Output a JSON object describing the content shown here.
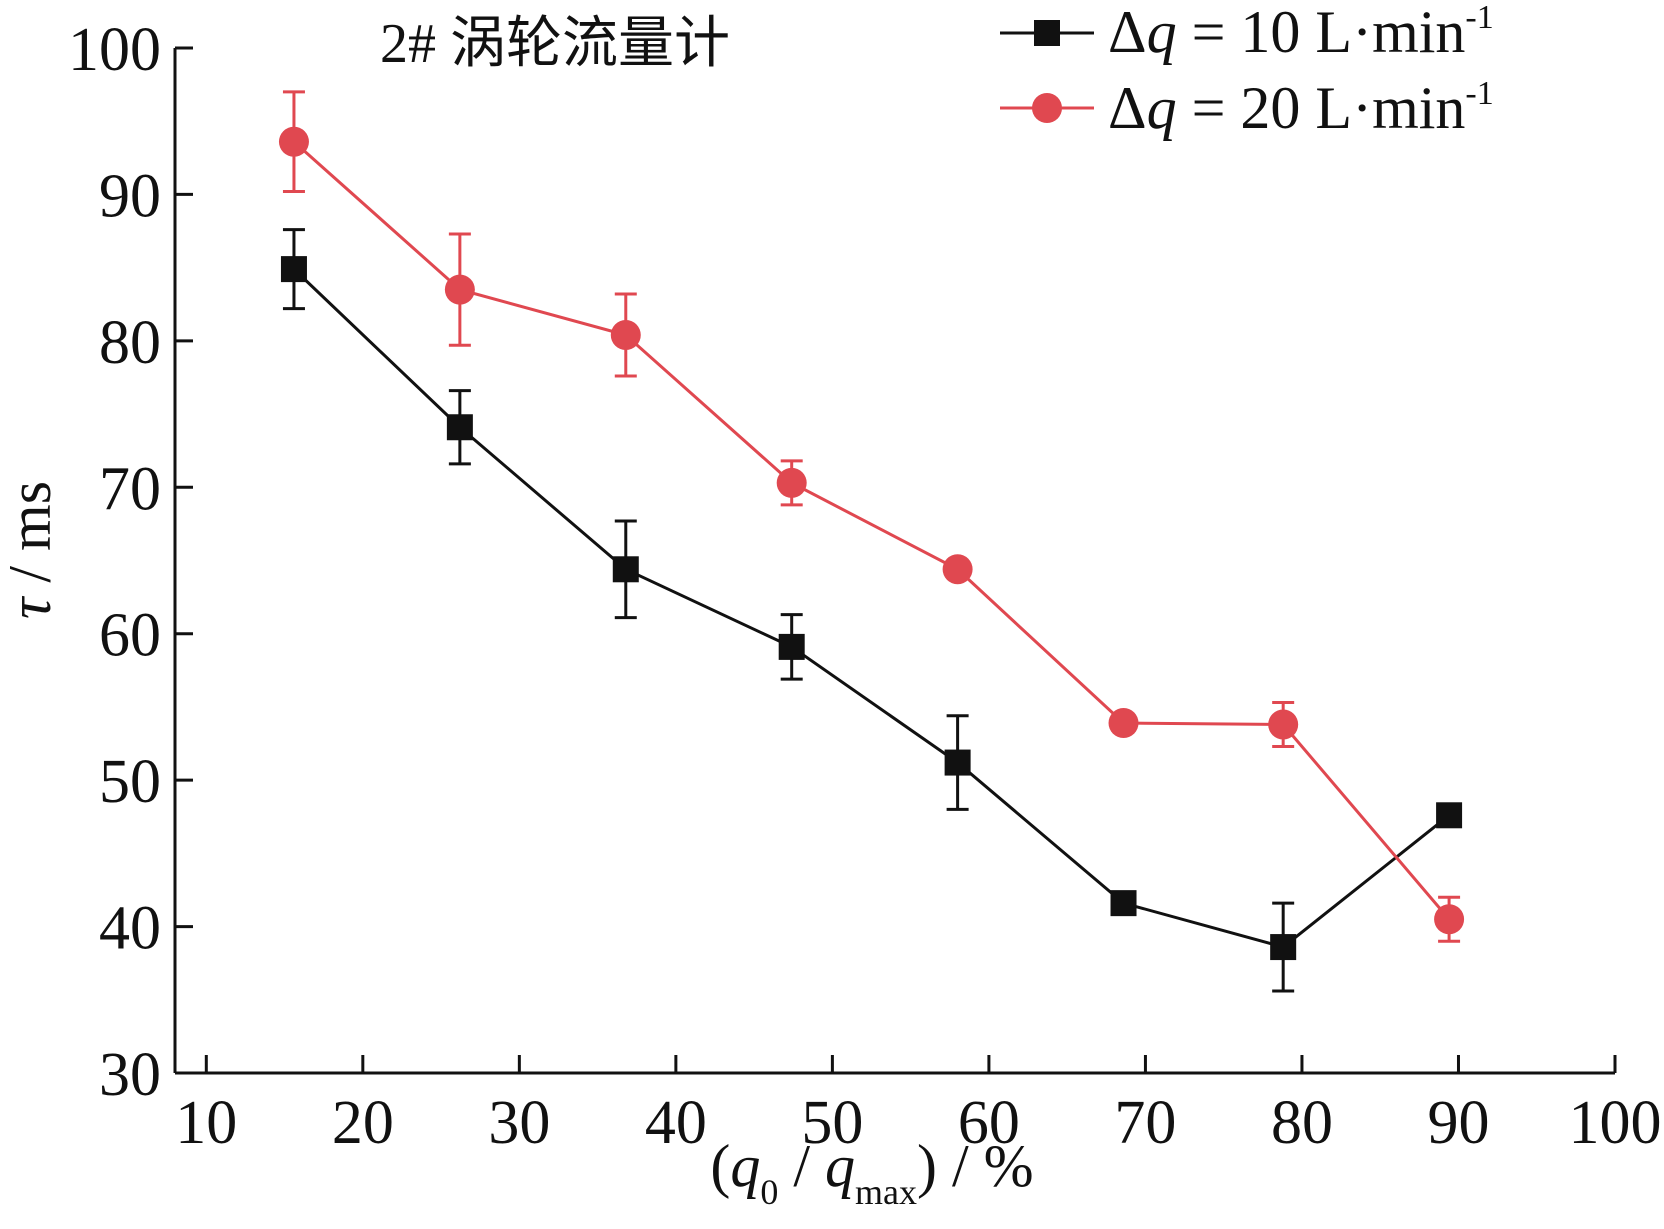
{
  "chart_data": {
    "type": "line",
    "title": "2# 涡轮流量计",
    "xlabel": {
      "open": "(",
      "q": "q",
      "sub0": "0",
      "slash": " / ",
      "q2": "q",
      "submax": "max",
      "close": ") / %"
    },
    "ylabel": {
      "sym": "τ",
      "unit": " / ms"
    },
    "xlim": [
      8,
      100
    ],
    "ylim": [
      30,
      100
    ],
    "xticks": [
      10,
      20,
      30,
      40,
      50,
      60,
      70,
      80,
      90,
      100
    ],
    "yticks": [
      30,
      40,
      50,
      60,
      70,
      80,
      90,
      100
    ],
    "grid": false,
    "legend_position": "top-right",
    "series": [
      {
        "legend": {
          "delta": "Δ",
          "q": "q",
          "eq": " = 10 L·min",
          "sup": "-1"
        },
        "color": "#111111",
        "marker": "square",
        "x": [
          15.6,
          26.2,
          36.8,
          47.4,
          58.0,
          68.6,
          78.8,
          89.4
        ],
        "y": [
          84.9,
          74.1,
          64.4,
          59.1,
          51.2,
          41.6,
          38.6,
          47.6
        ],
        "err": [
          2.7,
          2.5,
          3.3,
          2.2,
          3.2,
          0.6,
          3.0,
          0.6
        ]
      },
      {
        "legend": {
          "delta": "Δ",
          "q": "q",
          "eq": " = 20 L·min",
          "sup": "-1"
        },
        "color": "#e04850",
        "marker": "circle",
        "x": [
          15.6,
          26.2,
          36.8,
          47.4,
          58.0,
          68.6,
          78.8,
          89.4
        ],
        "y": [
          93.6,
          83.5,
          80.4,
          70.3,
          64.4,
          53.9,
          53.8,
          40.5
        ],
        "err": [
          3.4,
          3.8,
          2.8,
          1.5,
          0.5,
          0.6,
          1.5,
          1.5
        ]
      }
    ]
  }
}
